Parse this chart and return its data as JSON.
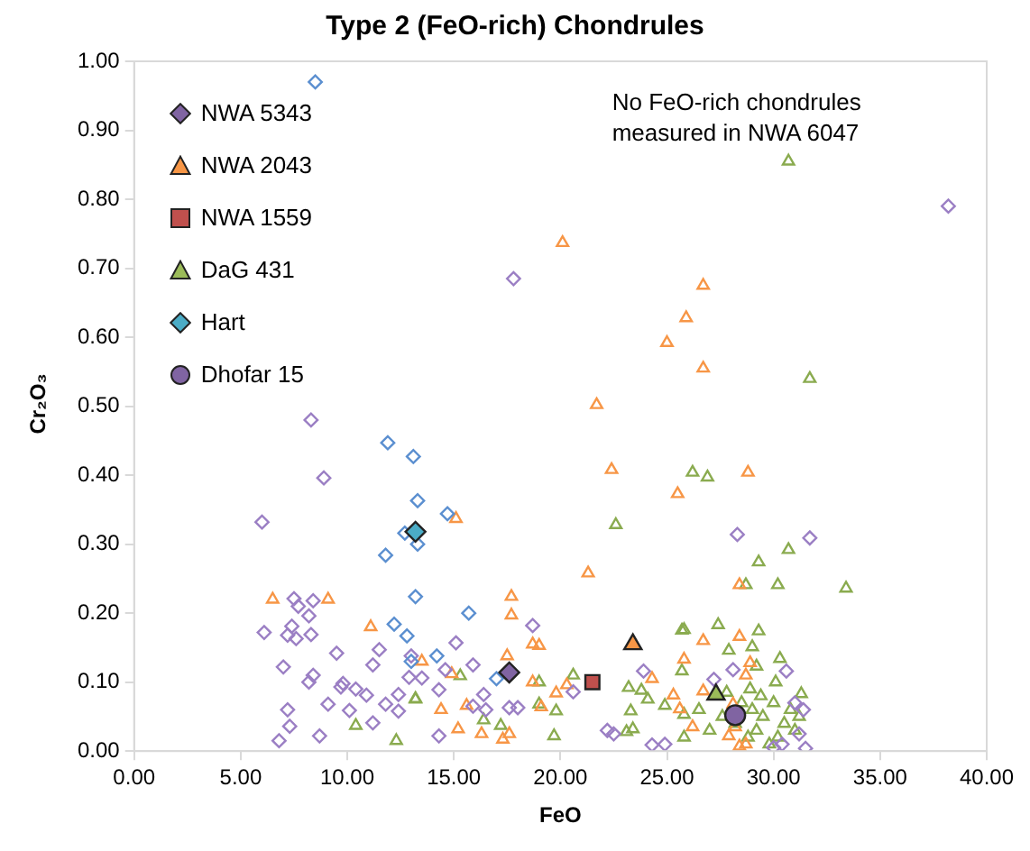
{
  "chart_data": {
    "type": "scatter",
    "title": "Type 2 (FeO-rich) Chondrules",
    "xlabel": "FeO",
    "ylabel": "Cr₂O₃",
    "annotations": [
      "No FeO-rich chondrules measured in NWA 6047"
    ],
    "xlim": [
      0,
      40
    ],
    "ylim": [
      0,
      1
    ],
    "xticks": [
      {
        "value": 0,
        "label": "0.00"
      },
      {
        "value": 5,
        "label": "5.00"
      },
      {
        "value": 10,
        "label": "10.00"
      },
      {
        "value": 15,
        "label": "15.00"
      },
      {
        "value": 20,
        "label": "20.00"
      },
      {
        "value": 25,
        "label": "25.00"
      },
      {
        "value": 30,
        "label": "30.00"
      },
      {
        "value": 35,
        "label": "35.00"
      },
      {
        "value": 40,
        "label": "40.00"
      }
    ],
    "yticks": [
      {
        "value": 0,
        "label": "0.00"
      },
      {
        "value": 0.1,
        "label": "0.10"
      },
      {
        "value": 0.2,
        "label": "0.20"
      },
      {
        "value": 0.3,
        "label": "0.30"
      },
      {
        "value": 0.4,
        "label": "0.40"
      },
      {
        "value": 0.5,
        "label": "0.50"
      },
      {
        "value": 0.6,
        "label": "0.60"
      },
      {
        "value": 0.7,
        "label": "0.70"
      },
      {
        "value": 0.8,
        "label": "0.80"
      },
      {
        "value": 0.9,
        "label": "0.90"
      },
      {
        "value": 1,
        "label": "1.00"
      }
    ],
    "grid": false,
    "legend": "top left",
    "series": [
      {
        "color": "#5b8fd0",
        "marker": "diamond",
        "x": [
          8.5,
          11.9,
          13.1,
          13.3,
          12.7,
          13.3,
          11.8,
          13.2,
          12.2,
          12.8,
          13.0,
          14.7,
          15.7,
          14.2,
          17.0
        ],
        "values": [
          0.97,
          0.447,
          0.427,
          0.363,
          0.316,
          0.3,
          0.284,
          0.224,
          0.184,
          0.167,
          0.13,
          0.344,
          0.2,
          0.138,
          0.105
        ]
      },
      {
        "color": "#9b7fc4",
        "marker": "diamond",
        "x": [
          17.8,
          38.2,
          8.3,
          8.9,
          6.0,
          7.5,
          7.7,
          8.4,
          8.2,
          6.1,
          7.4,
          7.2,
          7.6,
          8.3,
          7.0,
          9.5,
          11.5,
          11.2,
          8.4,
          8.2,
          9.8,
          9.7,
          10.4,
          10.9,
          9.1,
          10.1,
          11.8,
          12.4,
          12.4,
          12.9,
          7.2,
          7.3,
          6.8,
          8.7,
          11.2,
          15.1,
          18.7,
          15.9,
          13.0,
          13.5,
          14.6,
          14.3,
          16.4,
          15.9,
          16.5,
          17.6,
          18.0,
          20.6,
          23.9,
          14.3,
          22.2,
          22.5,
          24.3,
          24.9,
          28.3,
          31.7,
          27.2,
          28.1,
          30.6,
          31.0,
          31.4,
          31.2,
          31.5,
          30.4,
          30.0
        ],
        "values": [
          0.685,
          0.79,
          0.48,
          0.396,
          0.332,
          0.221,
          0.21,
          0.218,
          0.196,
          0.172,
          0.181,
          0.168,
          0.163,
          0.169,
          0.122,
          0.142,
          0.147,
          0.125,
          0.11,
          0.1,
          0.098,
          0.093,
          0.09,
          0.081,
          0.068,
          0.059,
          0.068,
          0.082,
          0.058,
          0.107,
          0.06,
          0.036,
          0.015,
          0.022,
          0.041,
          0.157,
          0.182,
          0.125,
          0.138,
          0.106,
          0.118,
          0.089,
          0.082,
          0.065,
          0.06,
          0.063,
          0.063,
          0.086,
          0.116,
          0.022,
          0.03,
          0.025,
          0.009,
          0.01,
          0.314,
          0.309,
          0.104,
          0.118,
          0.116,
          0.07,
          0.06,
          0.025,
          0.004,
          0.01,
          0.005
        ]
      },
      {
        "color": "#f79646",
        "marker": "triangle",
        "x": [
          20.1,
          26.7,
          25.9,
          25.0,
          26.7,
          21.7,
          22.4,
          25.5,
          21.3,
          15.1,
          17.7,
          17.7,
          18.7,
          19.0,
          17.5,
          14.9,
          18.7,
          19.8,
          20.3,
          14.4,
          15.6,
          15.2,
          16.3,
          17.3,
          17.6,
          19.1,
          24.3,
          25.8,
          25.3,
          25.6,
          6.5,
          9.1,
          11.1,
          13.5,
          28.8,
          28.4,
          26.7,
          28.4,
          28.9,
          28.7,
          26.7,
          28.1,
          28.2,
          28.4,
          28.7,
          26.2,
          27.9
        ],
        "values": [
          0.737,
          0.675,
          0.628,
          0.592,
          0.555,
          0.502,
          0.408,
          0.373,
          0.258,
          0.337,
          0.224,
          0.197,
          0.155,
          0.153,
          0.138,
          0.112,
          0.1,
          0.084,
          0.096,
          0.06,
          0.066,
          0.032,
          0.025,
          0.017,
          0.025,
          0.064,
          0.105,
          0.133,
          0.081,
          0.061,
          0.22,
          0.22,
          0.18,
          0.13,
          0.404,
          0.241,
          0.16,
          0.166,
          0.128,
          0.11,
          0.087,
          0.068,
          0.035,
          0.007,
          0.01,
          0.035,
          0.022
        ]
      },
      {
        "color": "#8aab4f",
        "marker": "triangle",
        "x": [
          30.7,
          31.7,
          26.2,
          26.9,
          30.7,
          29.3,
          28.7,
          30.2,
          33.4,
          25.8,
          27.4,
          29.3,
          27.9,
          29.0,
          30.3,
          29.2,
          31.3,
          28.5,
          29.0,
          29.5,
          30.0,
          30.5,
          29.2,
          28.8,
          30.2,
          31.0,
          29.8,
          28.2,
          27.6,
          27.0,
          26.5,
          25.8,
          30.8,
          29.4,
          28.9,
          30.1,
          31.2,
          27.8,
          22.6,
          25.7,
          15.3,
          19.0,
          20.6,
          13.2,
          19.0,
          19.8,
          23.2,
          23.8,
          24.1,
          24.9,
          16.4,
          17.2,
          19.7,
          23.3,
          23.4,
          23.1,
          25.7,
          25.8,
          13.2,
          10.4,
          12.3
        ],
        "values": [
          0.855,
          0.54,
          0.404,
          0.397,
          0.292,
          0.274,
          0.241,
          0.241,
          0.236,
          0.176,
          0.183,
          0.174,
          0.146,
          0.151,
          0.134,
          0.123,
          0.083,
          0.07,
          0.06,
          0.05,
          0.07,
          0.04,
          0.03,
          0.02,
          0.02,
          0.03,
          0.01,
          0.04,
          0.05,
          0.03,
          0.06,
          0.02,
          0.06,
          0.08,
          0.09,
          0.1,
          0.05,
          0.085,
          0.328,
          0.175,
          0.109,
          0.1,
          0.11,
          0.076,
          0.068,
          0.058,
          0.092,
          0.088,
          0.075,
          0.066,
          0.045,
          0.037,
          0.022,
          0.058,
          0.032,
          0.028,
          0.116,
          0.053,
          0.075,
          0.037,
          0.015
        ]
      },
      {
        "name": "NWA 5343",
        "color": "#8064a2",
        "marker": "diamond",
        "x": [
          17.6
        ],
        "values": [
          0.114
        ]
      },
      {
        "name": "NWA 2043",
        "color": "#f79646",
        "marker": "triangle",
        "x": [
          23.4
        ],
        "values": [
          0.155
        ]
      },
      {
        "name": "NWA 1559",
        "color": "#c0504d",
        "marker": "square",
        "x": [
          21.5
        ],
        "values": [
          0.1
        ]
      },
      {
        "name": "DaG 431",
        "color": "#9bbb59",
        "marker": "triangle",
        "x": [
          27.3
        ],
        "values": [
          0.082
        ]
      },
      {
        "name": "Hart",
        "color": "#4bacc6",
        "marker": "diamond",
        "x": [
          13.2
        ],
        "values": [
          0.318
        ]
      },
      {
        "name": "Dhofar 15",
        "color": "#8064a2",
        "marker": "circle",
        "x": [
          28.2
        ],
        "values": [
          0.052
        ]
      }
    ]
  }
}
